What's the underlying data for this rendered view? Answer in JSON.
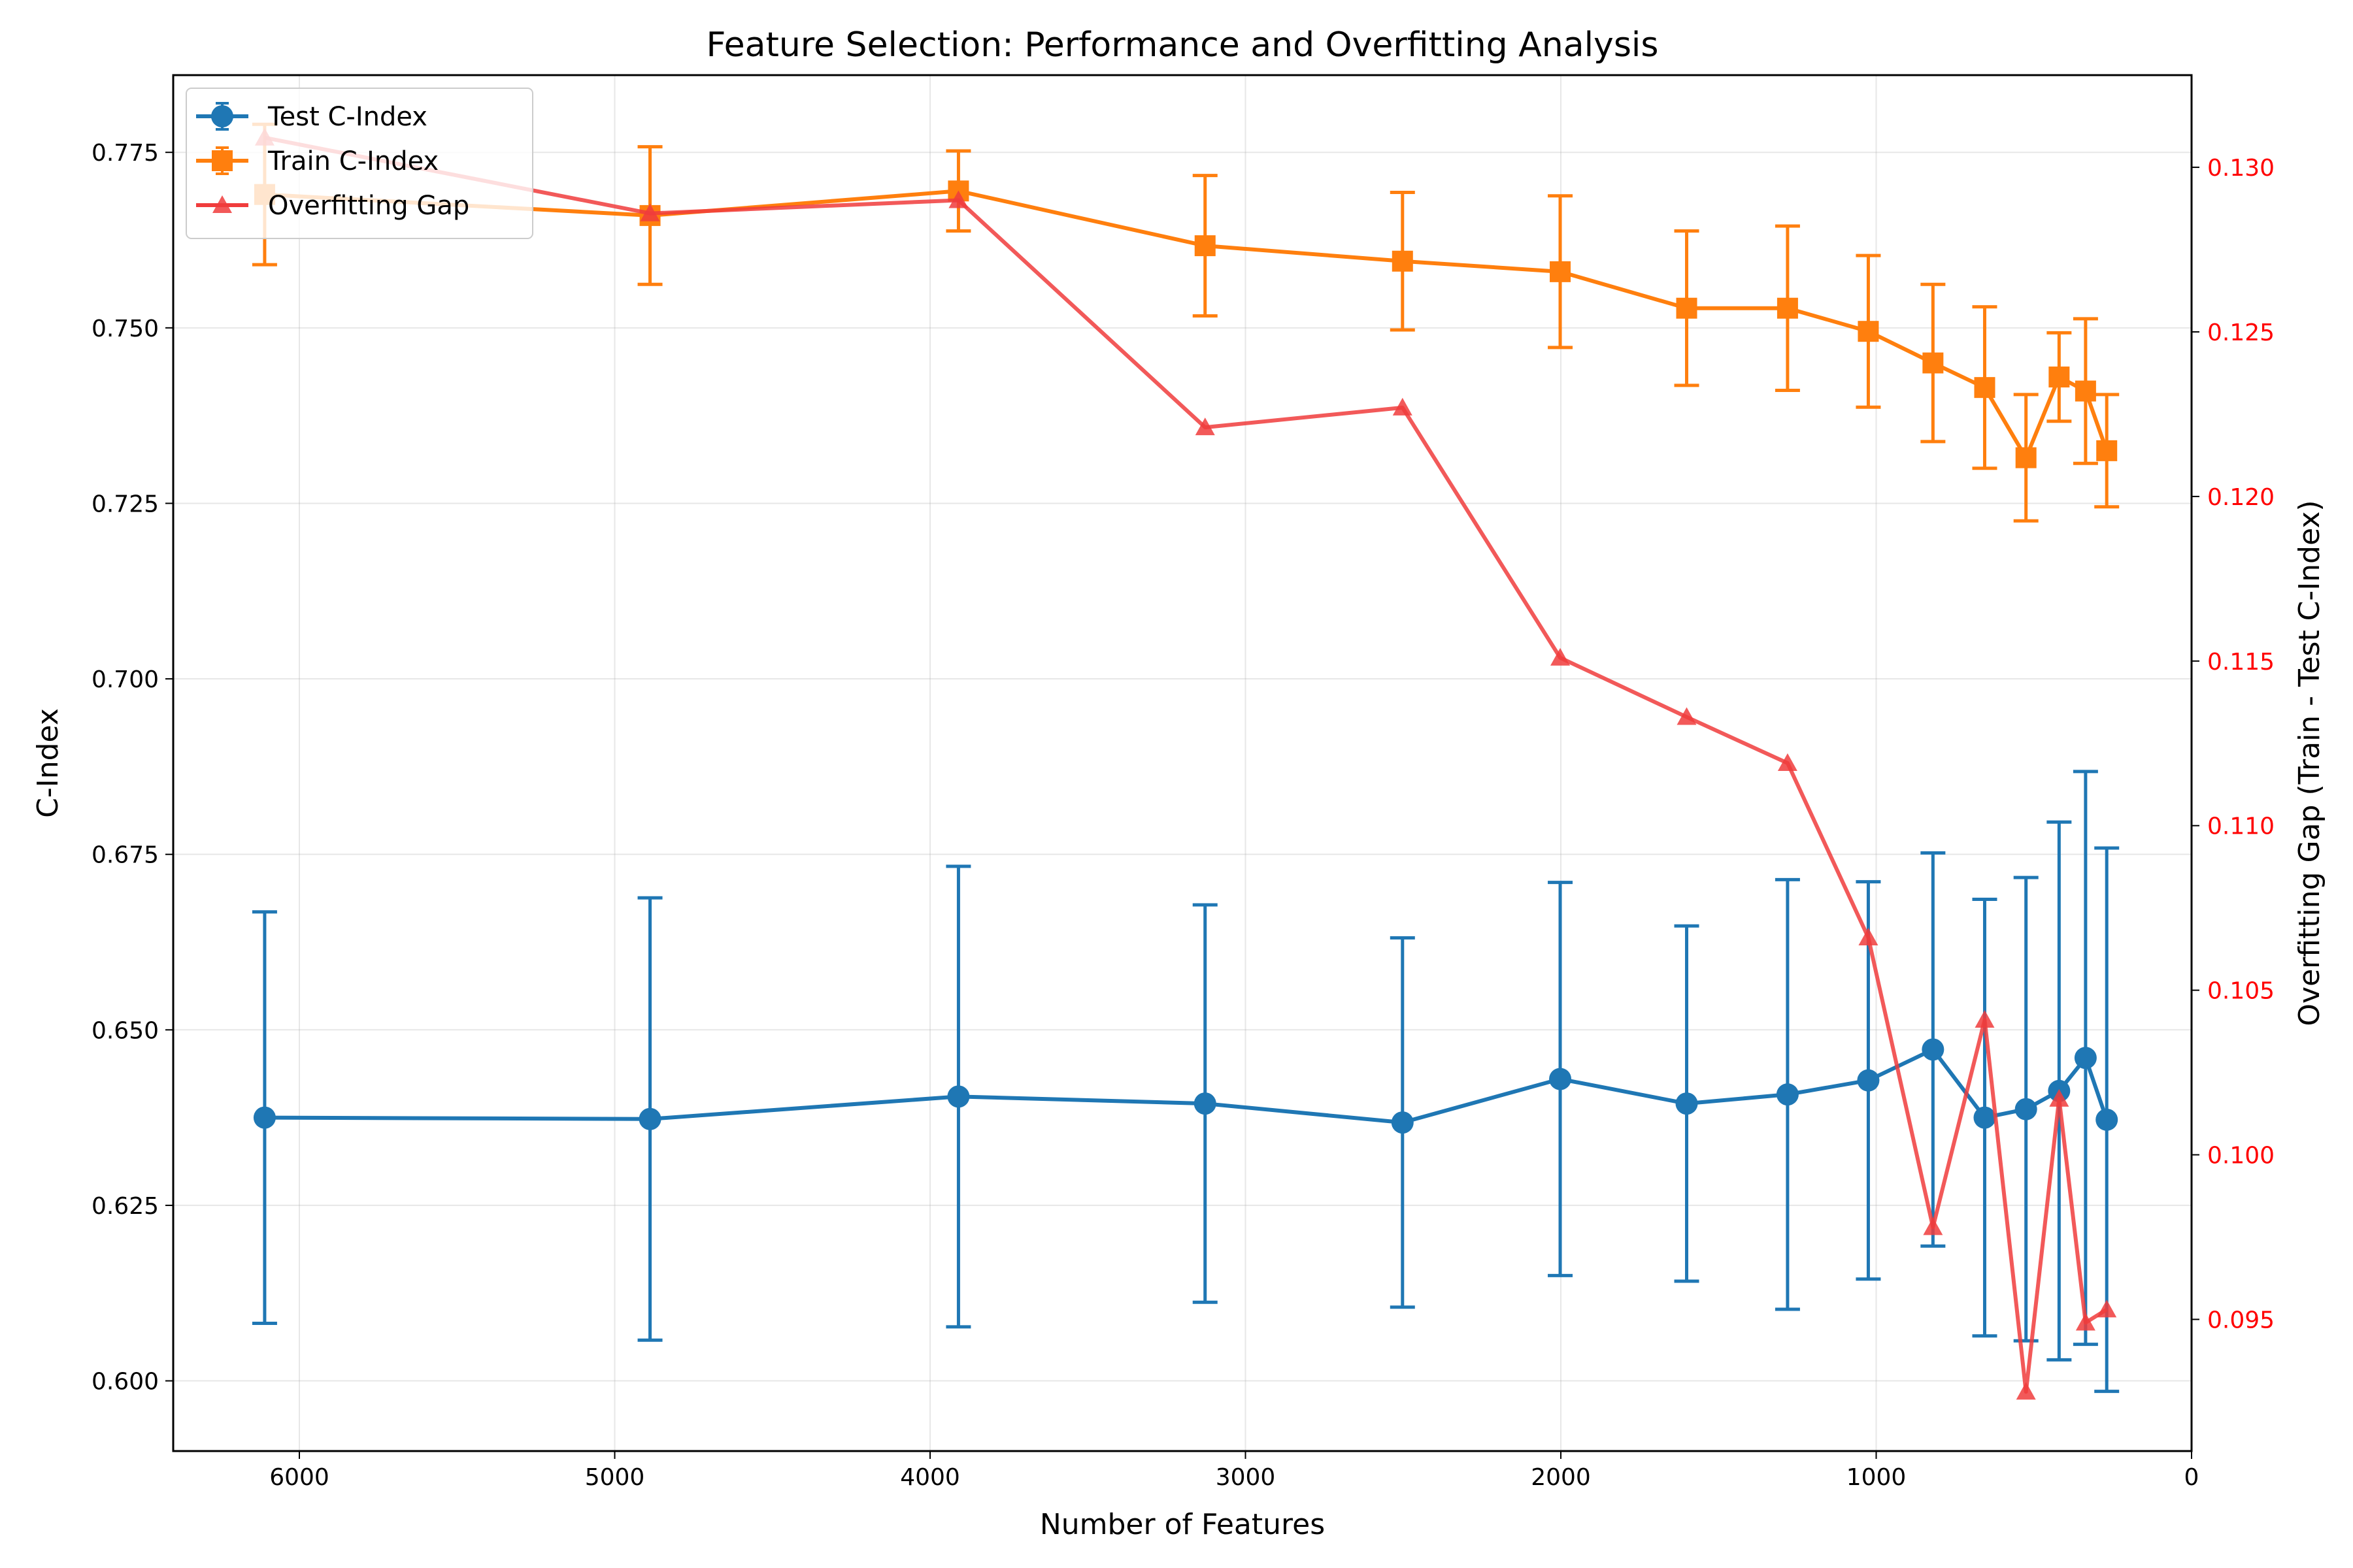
{
  "chart_data": {
    "type": "line",
    "title": "Feature Selection: Performance and Overfitting Analysis",
    "xlabel": "Number of Features",
    "ylabel": "C-Index",
    "y2label": "Overfitting Gap (Train - Test C-Index)",
    "xlim": [
      6400,
      0
    ],
    "ylim": [
      0.59,
      0.786
    ],
    "y2lim": [
      0.091,
      0.1328
    ],
    "x_ticks": [
      6000,
      5000,
      4000,
      3000,
      2000,
      1000,
      0
    ],
    "y_ticks": [
      0.6,
      0.625,
      0.65,
      0.675,
      0.7,
      0.725,
      0.75,
      0.775
    ],
    "y2_ticks": [
      0.095,
      0.1,
      0.105,
      0.11,
      0.115,
      0.12,
      0.125,
      0.13
    ],
    "grid": true,
    "legend_position": "upper-left",
    "x": [
      6110,
      4888,
      3910,
      3128,
      2502,
      2002,
      1601,
      1281,
      1025,
      820,
      656,
      525,
      420,
      336,
      269
    ],
    "series": [
      {
        "name": "Test C-Index",
        "axis": "left",
        "color": "#1f77b4",
        "marker": "circle",
        "values": [
          0.6375,
          0.6373,
          0.6405,
          0.6395,
          0.6368,
          0.643,
          0.6395,
          0.6408,
          0.6428,
          0.6472,
          0.6375,
          0.6387,
          0.6413,
          0.646,
          0.6372
        ],
        "errors": [
          0.0293,
          0.0315,
          0.0328,
          0.0283,
          0.0263,
          0.028,
          0.0253,
          0.0306,
          0.0283,
          0.028,
          0.0311,
          0.033,
          0.0383,
          0.0408,
          0.0387
        ]
      },
      {
        "name": "Train C-Index",
        "axis": "left",
        "color": "#ff7f0e",
        "marker": "square",
        "values": [
          0.769,
          0.766,
          0.7695,
          0.7617,
          0.7595,
          0.758,
          0.7528,
          0.7528,
          0.7495,
          0.745,
          0.7415,
          0.7315,
          0.743,
          0.741,
          0.7325
        ],
        "errors": [
          0.01,
          0.0098,
          0.0057,
          0.01,
          0.0098,
          0.0108,
          0.011,
          0.0117,
          0.0108,
          0.0112,
          0.0115,
          0.009,
          0.0063,
          0.0103,
          0.008
        ]
      },
      {
        "name": "Overfitting Gap",
        "axis": "right",
        "color": "#f03c3c",
        "marker": "triangle",
        "values": [
          0.1309,
          0.1286,
          0.129,
          0.1221,
          0.1227,
          0.1151,
          0.1133,
          0.1119,
          0.1066,
          0.0978,
          0.1041,
          0.0928,
          0.1017,
          0.0949,
          0.0953
        ]
      }
    ]
  }
}
